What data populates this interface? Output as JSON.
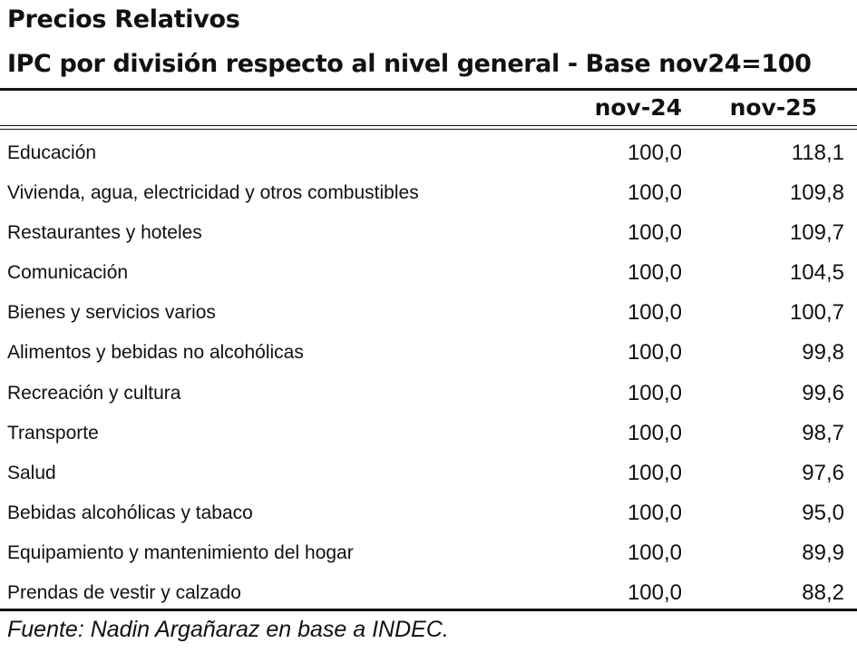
{
  "title": "Precios Relativos",
  "subtitle": "IPC por división respecto al nivel general - Base nov24=100",
  "source": "Fuente: Nadin Argañaraz en base a INDEC.",
  "chart_data": {
    "type": "table",
    "columns": [
      "nov-24",
      "nov-25"
    ],
    "rows": [
      {
        "label": "Educación",
        "values": [
          "100,0",
          "118,1"
        ]
      },
      {
        "label": "Vivienda, agua, electricidad y otros combustibles",
        "values": [
          "100,0",
          "109,8"
        ]
      },
      {
        "label": "Restaurantes y hoteles",
        "values": [
          "100,0",
          "109,7"
        ]
      },
      {
        "label": "Comunicación",
        "values": [
          "100,0",
          "104,5"
        ]
      },
      {
        "label": "Bienes y servicios varios",
        "values": [
          "100,0",
          "100,7"
        ]
      },
      {
        "label": "Alimentos y bebidas no alcohólicas",
        "values": [
          "100,0",
          "99,8"
        ]
      },
      {
        "label": "Recreación y cultura",
        "values": [
          "100,0",
          "99,6"
        ]
      },
      {
        "label": "Transporte",
        "values": [
          "100,0",
          "98,7"
        ]
      },
      {
        "label": "Salud",
        "values": [
          "100,0",
          "97,6"
        ]
      },
      {
        "label": "Bebidas alcohólicas y tabaco",
        "values": [
          "100,0",
          "95,0"
        ]
      },
      {
        "label": "Equipamiento y mantenimiento del hogar",
        "values": [
          "100,0",
          "89,9"
        ]
      },
      {
        "label": "Prendas de vestir y calzado",
        "values": [
          "100,0",
          "88,2"
        ]
      }
    ]
  }
}
